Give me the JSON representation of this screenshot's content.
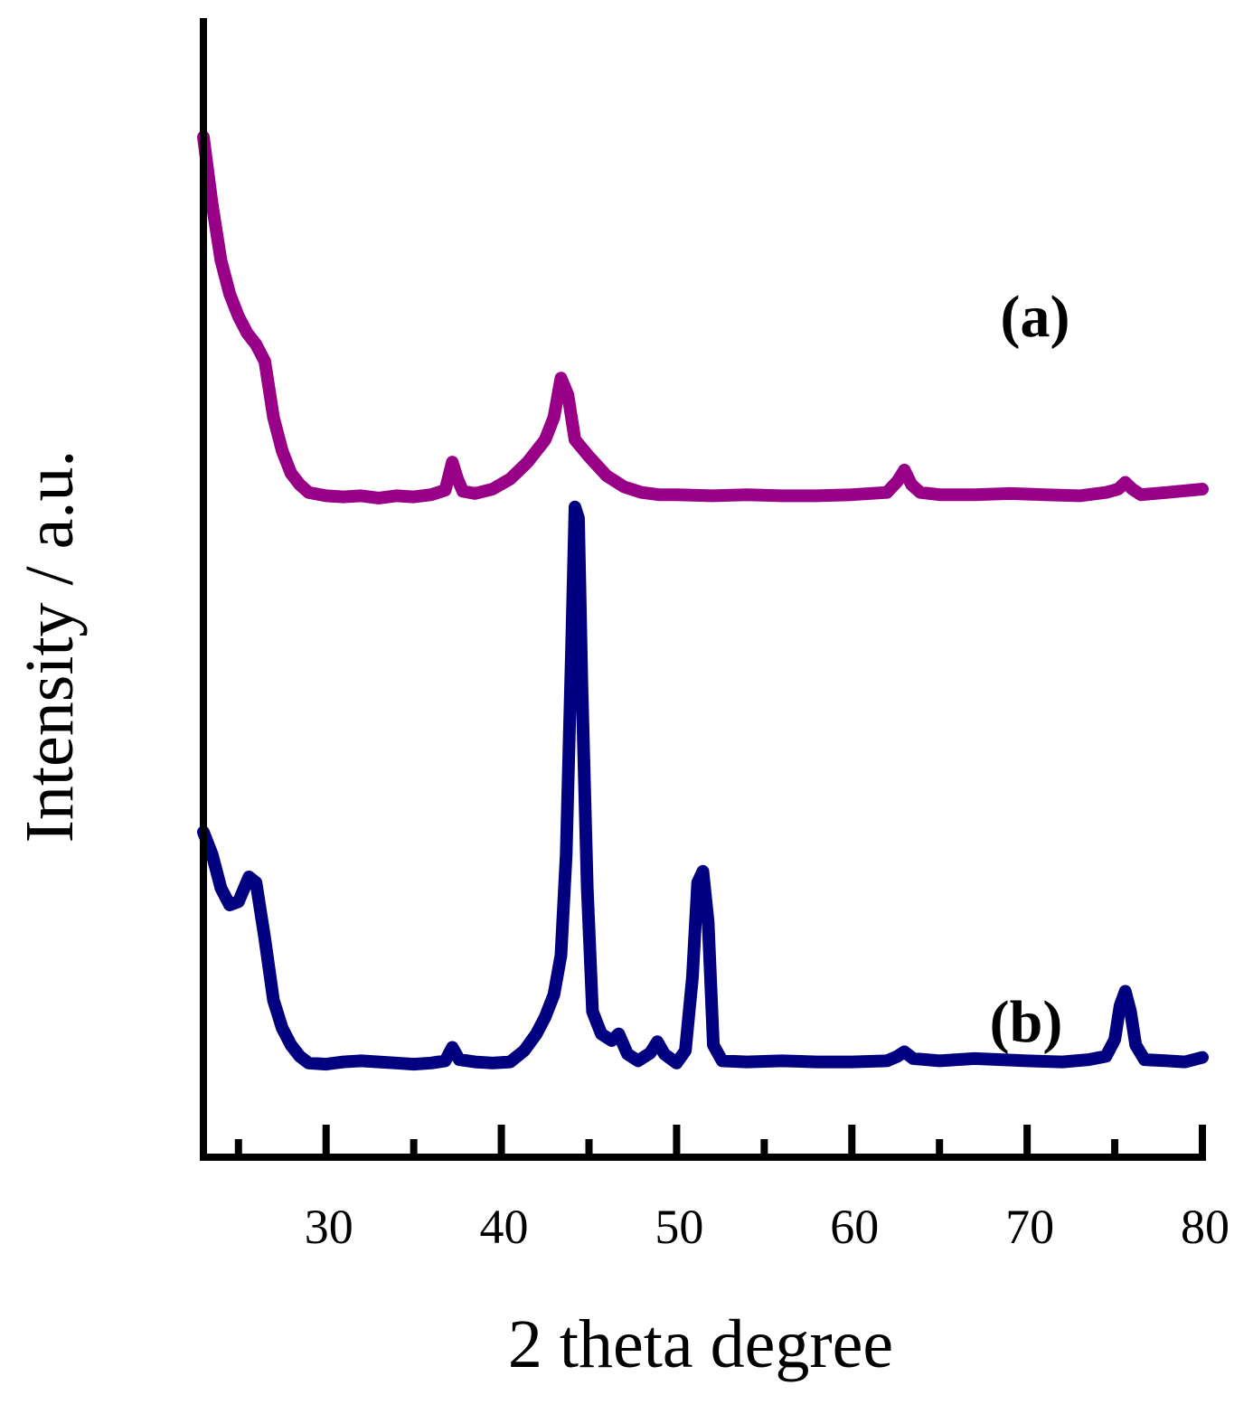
{
  "chart_data": {
    "type": "line",
    "title": "",
    "xlabel": "2 theta degree",
    "ylabel": "Intensity / a.u.",
    "xlim": [
      23,
      80
    ],
    "x_ticks": [
      30,
      40,
      50,
      60,
      70,
      80
    ],
    "x_minor_ticks": [
      25,
      35,
      45,
      55,
      65,
      75
    ],
    "grid": false,
    "y_ticks_shown": false,
    "series": [
      {
        "name": "(a)",
        "color": "#990088",
        "points": [
          [
            23.0,
            91.0
          ],
          [
            23.5,
            85.0
          ],
          [
            24.0,
            80.0
          ],
          [
            24.5,
            77.0
          ],
          [
            25.0,
            75.0
          ],
          [
            25.5,
            73.5
          ],
          [
            26.0,
            72.5
          ],
          [
            26.5,
            71.0
          ],
          [
            27.0,
            66.0
          ],
          [
            27.5,
            63.0
          ],
          [
            28.0,
            61.0
          ],
          [
            28.5,
            60.0
          ],
          [
            29.0,
            59.3
          ],
          [
            30.0,
            59.0
          ],
          [
            31.0,
            58.9
          ],
          [
            32.0,
            59.0
          ],
          [
            33.0,
            58.8
          ],
          [
            34.0,
            59.0
          ],
          [
            35.0,
            58.9
          ],
          [
            36.0,
            59.1
          ],
          [
            36.8,
            59.5
          ],
          [
            37.2,
            62.0
          ],
          [
            37.5,
            60.5
          ],
          [
            37.8,
            59.4
          ],
          [
            38.5,
            59.2
          ],
          [
            39.5,
            59.6
          ],
          [
            40.5,
            60.5
          ],
          [
            41.5,
            62.0
          ],
          [
            42.5,
            64.0
          ],
          [
            43.0,
            66.0
          ],
          [
            43.4,
            69.5
          ],
          [
            43.8,
            68.0
          ],
          [
            44.2,
            64.0
          ],
          [
            45.0,
            62.5
          ],
          [
            46.0,
            60.8
          ],
          [
            47.0,
            59.8
          ],
          [
            48.0,
            59.3
          ],
          [
            49.0,
            59.1
          ],
          [
            50.0,
            59.1
          ],
          [
            52.0,
            59.0
          ],
          [
            54.0,
            59.1
          ],
          [
            56.0,
            59.0
          ],
          [
            58.0,
            59.0
          ],
          [
            60.0,
            59.1
          ],
          [
            62.0,
            59.3
          ],
          [
            62.6,
            60.3
          ],
          [
            63.0,
            61.3
          ],
          [
            63.4,
            60.0
          ],
          [
            63.9,
            59.3
          ],
          [
            65.0,
            59.1
          ],
          [
            67.0,
            59.1
          ],
          [
            69.0,
            59.2
          ],
          [
            71.0,
            59.1
          ],
          [
            73.0,
            59.0
          ],
          [
            74.5,
            59.3
          ],
          [
            75.2,
            59.6
          ],
          [
            75.6,
            60.2
          ],
          [
            76.0,
            59.6
          ],
          [
            76.5,
            59.1
          ],
          [
            78.0,
            59.3
          ],
          [
            80.0,
            59.6
          ]
        ]
      },
      {
        "name": "(b)",
        "color": "#000080",
        "points": [
          [
            23.0,
            29.0
          ],
          [
            23.5,
            27.0
          ],
          [
            24.0,
            24.0
          ],
          [
            24.5,
            22.5
          ],
          [
            25.0,
            22.8
          ],
          [
            25.6,
            25.0
          ],
          [
            26.0,
            24.5
          ],
          [
            26.5,
            19.5
          ],
          [
            27.0,
            14.0
          ],
          [
            27.5,
            11.5
          ],
          [
            28.0,
            10.0
          ],
          [
            28.5,
            9.0
          ],
          [
            29.0,
            8.4
          ],
          [
            30.0,
            8.3
          ],
          [
            31.0,
            8.5
          ],
          [
            32.0,
            8.6
          ],
          [
            33.0,
            8.5
          ],
          [
            34.0,
            8.4
          ],
          [
            35.0,
            8.3
          ],
          [
            36.0,
            8.4
          ],
          [
            36.8,
            8.6
          ],
          [
            37.2,
            9.8
          ],
          [
            37.6,
            8.7
          ],
          [
            38.5,
            8.5
          ],
          [
            39.5,
            8.4
          ],
          [
            40.5,
            8.5
          ],
          [
            41.3,
            9.5
          ],
          [
            42.0,
            11.0
          ],
          [
            42.5,
            12.5
          ],
          [
            43.0,
            14.5
          ],
          [
            43.4,
            18.0
          ],
          [
            43.7,
            27.0
          ],
          [
            44.0,
            45.0
          ],
          [
            44.2,
            58.0
          ],
          [
            44.4,
            57.0
          ],
          [
            44.6,
            42.0
          ],
          [
            44.9,
            24.0
          ],
          [
            45.2,
            13.0
          ],
          [
            45.7,
            11.0
          ],
          [
            46.3,
            10.4
          ],
          [
            46.7,
            11.0
          ],
          [
            47.2,
            9.2
          ],
          [
            47.8,
            8.6
          ],
          [
            48.5,
            9.3
          ],
          [
            48.9,
            10.3
          ],
          [
            49.3,
            9.2
          ],
          [
            50.0,
            8.4
          ],
          [
            50.5,
            9.5
          ],
          [
            50.9,
            16.0
          ],
          [
            51.2,
            24.5
          ],
          [
            51.5,
            25.5
          ],
          [
            51.8,
            21.0
          ],
          [
            52.1,
            10.0
          ],
          [
            52.6,
            8.6
          ],
          [
            54.0,
            8.5
          ],
          [
            56.0,
            8.6
          ],
          [
            58.0,
            8.5
          ],
          [
            60.0,
            8.5
          ],
          [
            62.0,
            8.6
          ],
          [
            62.6,
            9.0
          ],
          [
            63.0,
            9.4
          ],
          [
            63.5,
            8.8
          ],
          [
            65.0,
            8.6
          ],
          [
            67.0,
            8.8
          ],
          [
            68.5,
            8.7
          ],
          [
            70.0,
            8.6
          ],
          [
            72.0,
            8.5
          ],
          [
            73.5,
            8.7
          ],
          [
            74.5,
            9.0
          ],
          [
            75.0,
            10.5
          ],
          [
            75.3,
            13.5
          ],
          [
            75.6,
            14.8
          ],
          [
            75.9,
            13.0
          ],
          [
            76.2,
            10.0
          ],
          [
            76.7,
            8.7
          ],
          [
            78.0,
            8.6
          ],
          [
            79.0,
            8.5
          ],
          [
            80.0,
            8.9
          ]
        ]
      }
    ]
  }
}
